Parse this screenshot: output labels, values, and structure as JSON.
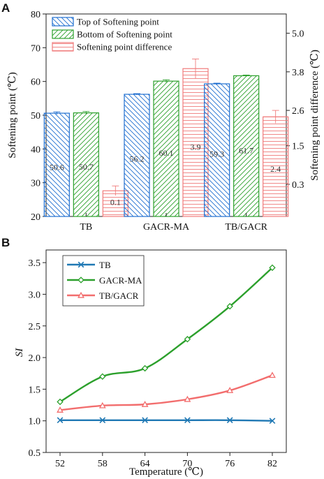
{
  "chart_data": [
    {
      "type": "bar",
      "panel_label": "A",
      "categories": [
        "TB",
        "GACR-MA",
        "TB/GACR"
      ],
      "series": [
        {
          "name": "Top of Softening point",
          "values": [
            50.6,
            56.2,
            59.3
          ],
          "axis": "left",
          "color": "#1f6fd0",
          "hatch": "backslash",
          "labels": [
            "50.6",
            "56.2",
            "59.3"
          ],
          "errors": [
            0.4,
            0.2,
            0.2
          ]
        },
        {
          "name": "Bottom of Softening point",
          "values": [
            50.7,
            60.1,
            61.7
          ],
          "axis": "left",
          "color": "#2ca02c",
          "hatch": "slash",
          "labels": [
            "50.7",
            "60.1",
            "61.7"
          ],
          "errors": [
            0.4,
            0.4,
            0.2
          ]
        },
        {
          "name": "Softening point difference",
          "values": [
            0.1,
            3.9,
            2.4
          ],
          "axis": "right",
          "color": "#f07c7c",
          "hatch": "horizontal",
          "labels": [
            "0.1",
            "3.9",
            "2.4"
          ],
          "errors": [
            0.15,
            0.3,
            0.2
          ]
        }
      ],
      "ylabel": "Softening point (℃)",
      "ylim": [
        20,
        80
      ],
      "yticks": [
        "20",
        "30",
        "40",
        "50",
        "60",
        "70",
        "80"
      ],
      "y2label": "Softening point difference (℃)",
      "y2lim": [
        -0.7,
        5.6
      ],
      "y2ticks": [
        "0.3",
        "1.5",
        "2.6",
        "3.8",
        "5.0"
      ],
      "y2tick_values": [
        0.3,
        1.5,
        2.6,
        3.8,
        5.0
      ],
      "legend": "top-left"
    },
    {
      "type": "line",
      "panel_label": "B",
      "x": [
        52,
        58,
        64,
        70,
        76,
        82
      ],
      "xticks": [
        "52",
        "58",
        "64",
        "70",
        "76",
        "82"
      ],
      "series": [
        {
          "name": "TB",
          "values": [
            1.01,
            1.01,
            1.01,
            1.01,
            1.01,
            1.0
          ],
          "color": "#1f78b4",
          "marker": "x"
        },
        {
          "name": "GACR-MA",
          "values": [
            1.3,
            1.7,
            1.83,
            2.29,
            2.81,
            3.42
          ],
          "color": "#2ca02c",
          "marker": "diamond"
        },
        {
          "name": "TB/GACR",
          "values": [
            1.17,
            1.24,
            1.26,
            1.34,
            1.48,
            1.72
          ],
          "color": "#f26d6d",
          "marker": "triangle"
        }
      ],
      "xlabel": "Temperature (℃)",
      "ylabel": "SI",
      "ylim": [
        0.5,
        3.7
      ],
      "yticks": [
        "0.5",
        "1.0",
        "1.5",
        "2.0",
        "2.5",
        "3.0",
        "3.5"
      ],
      "legend": "top-left"
    }
  ]
}
